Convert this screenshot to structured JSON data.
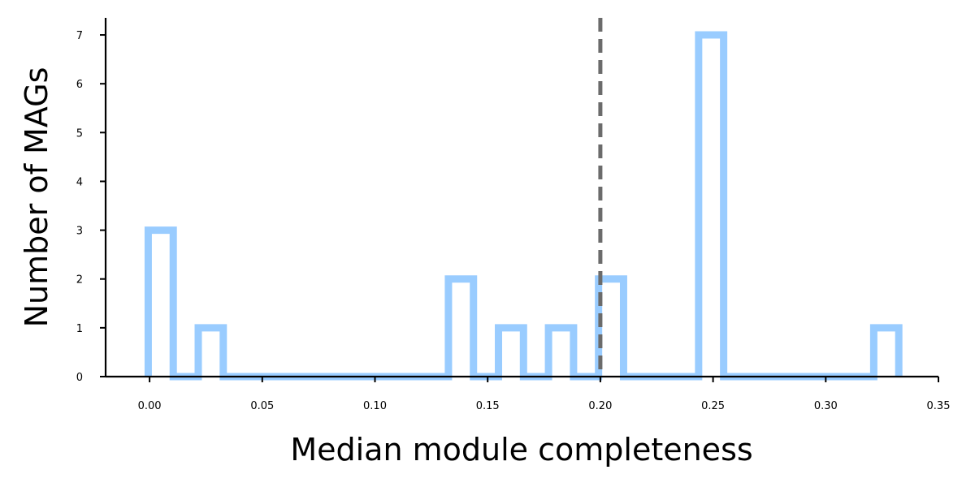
{
  "chart_data": {
    "type": "bar",
    "subtype": "histogram-step",
    "title": "",
    "xlabel": "Median module completeness",
    "ylabel": "Number of MAGs",
    "xlim": [
      -0.0195,
      0.35
    ],
    "ylim": [
      0,
      7.35
    ],
    "bin_width": 0.0111,
    "bin_starts": [
      -0.0006,
      0.0105,
      0.0216,
      0.0327,
      0.0438,
      0.0549,
      0.066,
      0.0771,
      0.0882,
      0.0993,
      0.1104,
      0.1215,
      0.1326,
      0.1437,
      0.1548,
      0.1659,
      0.177,
      0.1881,
      0.1992,
      0.2103,
      0.2214,
      0.2325,
      0.2436,
      0.2547,
      0.2658,
      0.2769,
      0.288,
      0.2991,
      0.3102,
      0.3213,
      0.3324
    ],
    "counts": [
      3,
      0,
      1,
      0,
      0,
      0,
      0,
      0,
      0,
      0,
      0,
      0,
      2,
      0,
      1,
      0,
      1,
      0,
      2,
      0,
      0,
      0,
      7,
      0,
      0,
      0,
      0,
      0,
      0,
      1
    ],
    "reference_line_x": 0.2,
    "xticks": [
      "0.00",
      "0.05",
      "0.10",
      "0.15",
      "0.20",
      "0.25",
      "0.30",
      "0.35"
    ],
    "xtick_values": [
      0,
      0.05,
      0.1,
      0.15,
      0.2,
      0.25,
      0.3,
      0.35
    ],
    "yticks": [
      "0",
      "1",
      "2",
      "3",
      "4",
      "5",
      "6",
      "7"
    ],
    "ytick_values": [
      0,
      1,
      2,
      3,
      4,
      5,
      6,
      7
    ],
    "grid": false,
    "colors": {
      "histogram": "#99ccff",
      "reference_line": "#6b6b6b",
      "axis": "#000000"
    }
  }
}
